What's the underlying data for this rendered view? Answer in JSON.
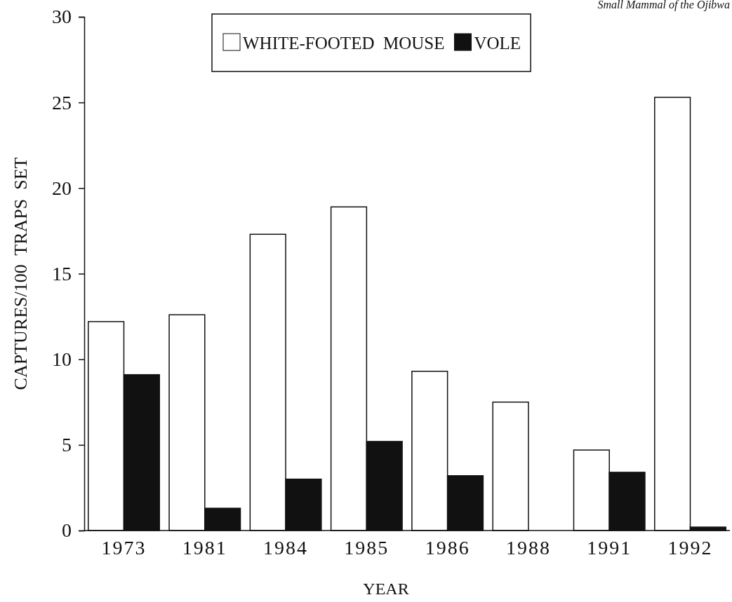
{
  "chart_data": {
    "type": "bar",
    "xlabel": "YEAR",
    "ylabel": "CAPTURES/100  TRAPS  SET",
    "annotations": [
      "Small Mammal of the Ojibwa"
    ],
    "categories": [
      "1973",
      "1981",
      "1984",
      "1985",
      "1986",
      "1988",
      "1991",
      "1992"
    ],
    "series": [
      {
        "name": "WHITE-FOOTED  MOUSE",
        "color": "#ffffff",
        "values": [
          12.2,
          12.6,
          17.3,
          18.9,
          9.3,
          7.5,
          4.7,
          25.3
        ]
      },
      {
        "name": "VOLE",
        "color": "#111111",
        "values": [
          9.1,
          1.3,
          3.0,
          5.2,
          3.2,
          0,
          3.4,
          0.2
        ]
      }
    ],
    "ylim": [
      0,
      30
    ],
    "yticks": [
      0,
      5,
      10,
      15,
      20,
      25,
      30
    ],
    "grid": false,
    "legend": "top"
  }
}
